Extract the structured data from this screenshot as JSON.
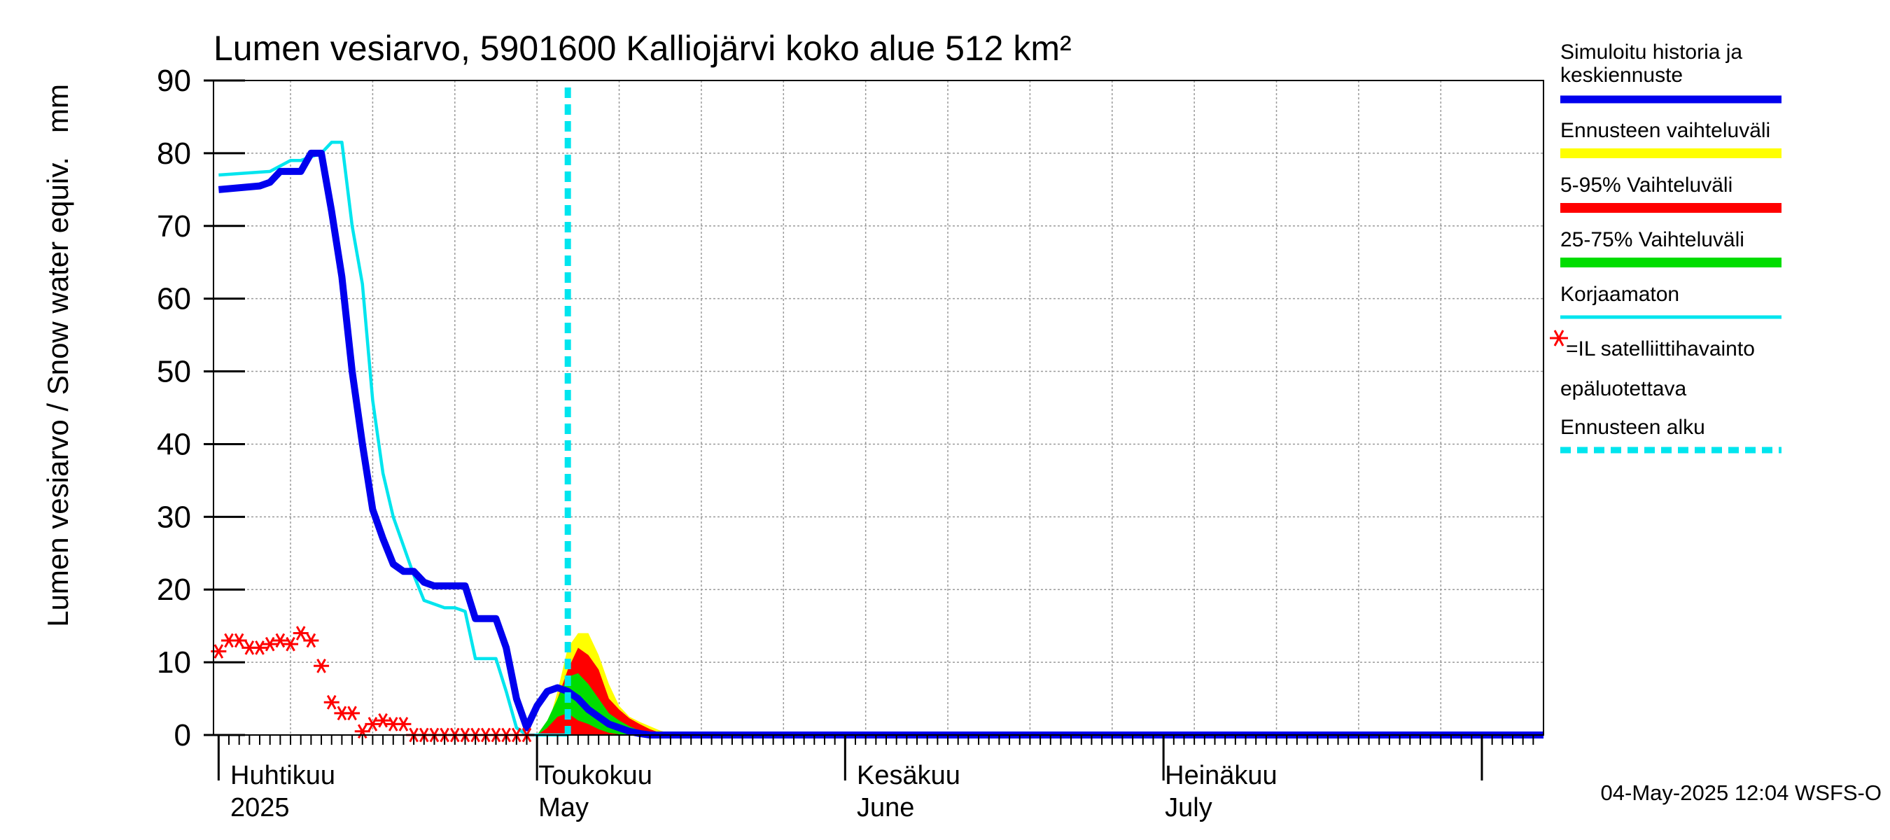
{
  "chart_data": {
    "type": "line",
    "title": "Lumen vesiarvo, 5901600 Kalliojärvi koko alue 512 km²",
    "ylabel": "Lumen vesiarvo / Snow water equiv.",
    "yunit": "mm",
    "ylim": [
      0,
      90
    ],
    "yticks": [
      0,
      10,
      20,
      30,
      40,
      50,
      60,
      70,
      80,
      90
    ],
    "x_unit": "day of year 2025",
    "xlim": [
      89.5,
      219
    ],
    "grid": true,
    "month_labels": [
      {
        "fi": "Huhtikuu",
        "en": "2025",
        "day": 91
      },
      {
        "fi": "Toukokuu",
        "en": "May",
        "day": 121
      },
      {
        "fi": "Kesäkuu",
        "en": "June",
        "day": 152
      },
      {
        "fi": "Heinäkuu",
        "en": "July",
        "day": 182
      }
    ],
    "forecast_start_day": 124,
    "series": [
      {
        "name": "Korjaamaton",
        "color": "#00e5ee",
        "x": [
          90,
          95,
          97,
          98,
          100,
          101,
          102,
          103,
          104,
          105,
          106,
          107,
          108,
          109,
          110,
          111,
          112,
          113,
          114,
          115,
          116,
          117,
          118,
          119,
          120,
          121,
          122,
          123,
          124
        ],
        "y": [
          77,
          77.5,
          79,
          79,
          80,
          81.5,
          81.5,
          70,
          62,
          46,
          36,
          30,
          26,
          22,
          18.5,
          18,
          17.5,
          17.5,
          17,
          10.5,
          10.5,
          10.5,
          6,
          1,
          0,
          0,
          0,
          0,
          0
        ]
      },
      {
        "name": "Simuloitu historia ja keskiennuste",
        "color": "#0000ee",
        "x": [
          90,
          94,
          95,
          96,
          97,
          98,
          99,
          100,
          101,
          102,
          103,
          104,
          105,
          106,
          107,
          108,
          109,
          110,
          111,
          112,
          113,
          114,
          115,
          116,
          117,
          118,
          119,
          120,
          121,
          122,
          123,
          124,
          125,
          126,
          127,
          128,
          129,
          130,
          131,
          132,
          133,
          134,
          135,
          136,
          219
        ],
        "y": [
          75,
          75.5,
          76,
          77.5,
          77.5,
          77.5,
          80,
          80,
          72,
          63,
          50,
          40,
          31,
          27,
          23.5,
          22.5,
          22.5,
          21,
          20.5,
          20.5,
          20.5,
          20.5,
          16,
          16,
          16,
          12,
          5,
          1,
          4,
          6,
          6.5,
          6,
          5,
          3.5,
          2.5,
          1.5,
          1,
          0.5,
          0.2,
          0,
          0,
          0,
          0,
          0,
          0
        ]
      },
      {
        "name": "Ennusteen vaihteluväli",
        "color": "#ffff00",
        "x": [
          121,
          122,
          123,
          124,
          125,
          126,
          127,
          128,
          129,
          130,
          131,
          132,
          133,
          134,
          135,
          136
        ],
        "y_low": [
          0,
          0,
          0,
          0,
          0,
          0,
          0,
          0,
          0,
          0,
          0,
          0,
          0,
          0,
          0,
          0
        ],
        "y_high": [
          0,
          1,
          6,
          12,
          14,
          14,
          11,
          7,
          4,
          2.5,
          1.8,
          1.2,
          0.6,
          0.2,
          0,
          0
        ]
      },
      {
        "name": "5-95% Vaihteluväli",
        "color": "#ff0000",
        "x": [
          121,
          122,
          123,
          124,
          125,
          126,
          127,
          128,
          129,
          130,
          131,
          132,
          133,
          134,
          135,
          136
        ],
        "y_low": [
          0,
          0,
          0,
          0,
          0,
          0,
          0,
          0,
          0,
          0,
          0,
          0,
          0,
          0,
          0,
          0
        ],
        "y_high": [
          0,
          1,
          5,
          9,
          12,
          11,
          9,
          5,
          3.5,
          2.3,
          1.5,
          0.8,
          0.3,
          0.1,
          0,
          0
        ]
      },
      {
        "name": "25-75% Vaihteluväli",
        "color": "#00dd00",
        "x": [
          121,
          122,
          123,
          124,
          125,
          126,
          127,
          128,
          129,
          130,
          131,
          132,
          133,
          134,
          135,
          136
        ],
        "y_low": [
          0,
          1,
          2.5,
          3,
          2,
          1.5,
          0.8,
          0.3,
          0.1,
          0,
          0,
          0,
          0,
          0,
          0,
          0
        ],
        "y_high": [
          0,
          2,
          5,
          8,
          8.5,
          7,
          5,
          3,
          2,
          1.2,
          0.6,
          0.2,
          0.1,
          0,
          0,
          0
        ]
      }
    ],
    "satellite_observations": {
      "name": "=IL satelliittihavainto epäluotettava",
      "color": "#ff0000",
      "x": [
        90,
        91,
        92,
        93,
        94,
        95,
        96,
        97,
        98,
        99,
        100,
        101,
        102,
        103,
        104,
        105,
        106,
        107,
        108,
        109,
        110,
        111,
        112,
        113,
        114,
        115,
        116,
        117,
        118,
        119,
        120
      ],
      "y": [
        11.5,
        13,
        13,
        12,
        12,
        12.5,
        13,
        12.5,
        14,
        13,
        9.5,
        4.5,
        3,
        3,
        0.5,
        1.5,
        2,
        1.5,
        1.5,
        0,
        0,
        0,
        0,
        0,
        0,
        0,
        0,
        0,
        0,
        0,
        0
      ]
    }
  },
  "legend": {
    "sim_line1": "Simuloitu historia ja",
    "sim_line2": "keskiennuste",
    "range": "Ennusteen vaihteluväli",
    "p5_95": "5-95% Vaihteluväli",
    "p25_75": "25-75% Vaihteluväli",
    "uncorrected": "Korjaamaton",
    "sat_line1": "=IL satelliittihavainto",
    "sat_line2": "epäluotettava",
    "forecast_start": "Ennusteen alku"
  },
  "colors": {
    "sim": "#0000ee",
    "yellow": "#ffff00",
    "red": "#ff0000",
    "green": "#00dd00",
    "cyan": "#00e5ee"
  },
  "footer": "04-May-2025 12:04 WSFS-O"
}
